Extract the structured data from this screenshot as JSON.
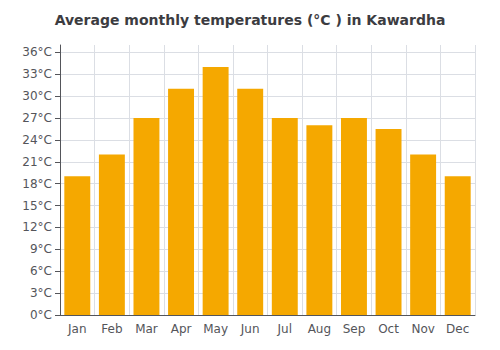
{
  "chart_data": {
    "type": "bar",
    "title": "Average monthly temperatures (°C ) in Kawardha",
    "categories": [
      "Jan",
      "Feb",
      "Mar",
      "Apr",
      "May",
      "Jun",
      "Jul",
      "Aug",
      "Sep",
      "Oct",
      "Nov",
      "Dec"
    ],
    "values": [
      19,
      22,
      27,
      31,
      34,
      31,
      27,
      26,
      27,
      25.5,
      22,
      19
    ],
    "color": "#F5A800",
    "ylim": [
      0,
      37
    ],
    "yticks": [
      {
        "value": 0,
        "label": "0°C"
      },
      {
        "value": 3,
        "label": "3°C"
      },
      {
        "value": 6,
        "label": "6°C"
      },
      {
        "value": 9,
        "label": "9°C"
      },
      {
        "value": 12,
        "label": "12°C"
      },
      {
        "value": 15,
        "label": "15°C"
      },
      {
        "value": 18,
        "label": "18°C"
      },
      {
        "value": 21,
        "label": "21°C"
      },
      {
        "value": 24,
        "label": "24°C"
      },
      {
        "value": 27,
        "label": "27°C"
      },
      {
        "value": 30,
        "label": "30°C"
      },
      {
        "value": 33,
        "label": "33°C"
      },
      {
        "value": 36,
        "label": "36°C"
      }
    ],
    "grid": true
  }
}
